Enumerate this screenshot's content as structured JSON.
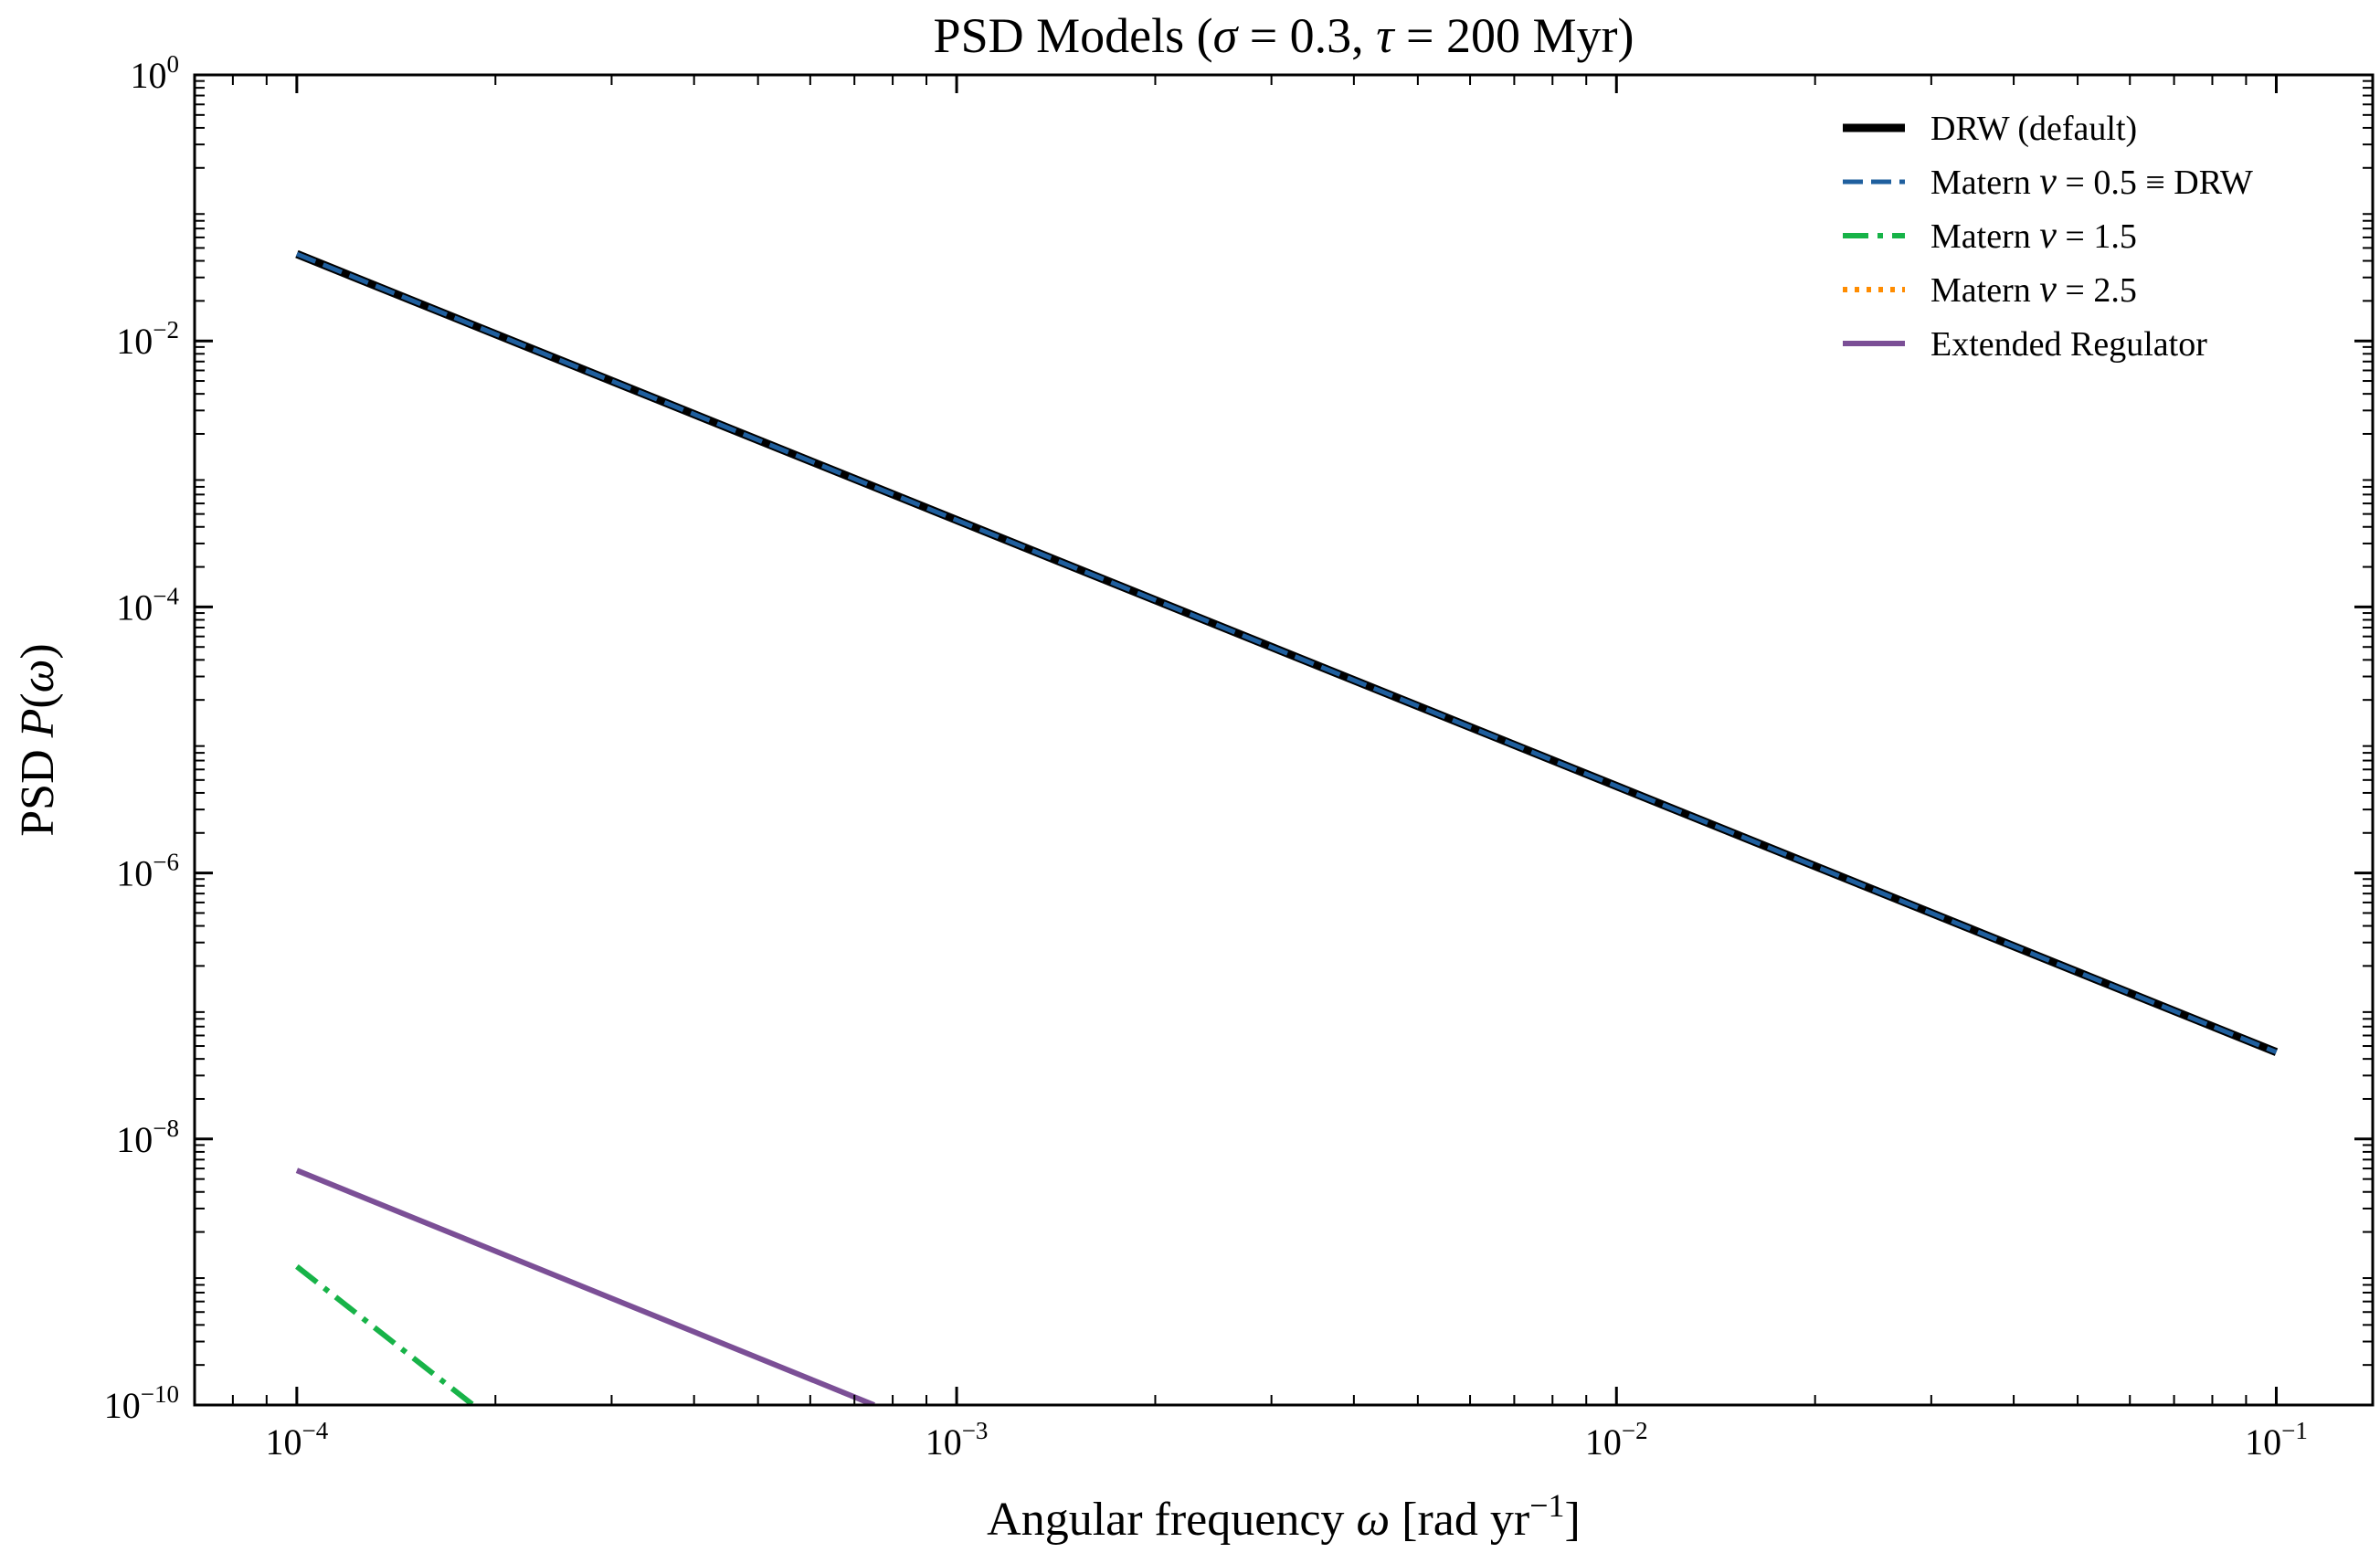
{
  "chart_data": {
    "type": "line",
    "title_parts": [
      "PSD Models (",
      "σ",
      " = 0.3, ",
      "τ",
      " = 200 Myr)"
    ],
    "xlabel_parts": [
      "Angular frequency ",
      "ω",
      " [rad yr",
      "−1",
      "]"
    ],
    "ylabel_parts": [
      "PSD ",
      "P",
      "(",
      "ω",
      ")"
    ],
    "x_scale": "log",
    "y_scale": "log",
    "xlim": [
      7e-05,
      0.14
    ],
    "ylim": [
      1e-10,
      1
    ],
    "grid": false,
    "legend_position": "top-right",
    "x_ticks": [
      {
        "value": 0.0001,
        "base": "10",
        "exp": "−4"
      },
      {
        "value": 0.001,
        "base": "10",
        "exp": "−3"
      },
      {
        "value": 0.01,
        "base": "10",
        "exp": "−2"
      },
      {
        "value": 0.1,
        "base": "10",
        "exp": "−1"
      }
    ],
    "y_ticks": [
      {
        "value": 1,
        "base": "10",
        "exp": "0"
      },
      {
        "value": 0.01,
        "base": "10",
        "exp": "−2"
      },
      {
        "value": 0.0001,
        "base": "10",
        "exp": "−4"
      },
      {
        "value": 1e-06,
        "base": "10",
        "exp": "−6"
      },
      {
        "value": 1e-08,
        "base": "10",
        "exp": "−8"
      },
      {
        "value": 1e-10,
        "base": "10",
        "exp": "−10"
      }
    ],
    "series": [
      {
        "name_parts": [
          "DRW (default)"
        ],
        "color": "#000000",
        "style": "solid",
        "width": 9,
        "x": [
          0.0001,
          0.1
        ],
        "y": [
          0.045,
          4.5e-08
        ]
      },
      {
        "name_parts": [
          "Matern ",
          "ν",
          " = 0.5  ≡  DRW"
        ],
        "color": "#1f5f9e",
        "style": "dashed",
        "width": 5,
        "x": [
          0.0001,
          0.1
        ],
        "y": [
          0.045,
          4.5e-08
        ]
      },
      {
        "name_parts": [
          "Matern ",
          "ν",
          " = 1.5"
        ],
        "color": "#17b348",
        "style": "dashdot",
        "width": 6,
        "x": [
          0.0001,
          0.000185
        ],
        "y": [
          1.1e-09,
          1e-10
        ]
      },
      {
        "name_parts": [
          "Matern ",
          "ν",
          " = 2.5"
        ],
        "color": "#ff8c00",
        "style": "dotted",
        "width": 6,
        "x": [],
        "y": []
      },
      {
        "name_parts": [
          "Extended Regulator"
        ],
        "color": "#7b4f96",
        "style": "solid",
        "width": 6,
        "x": [
          0.0001,
          0.00075
        ],
        "y": [
          5.8e-09,
          1e-10
        ]
      }
    ]
  }
}
